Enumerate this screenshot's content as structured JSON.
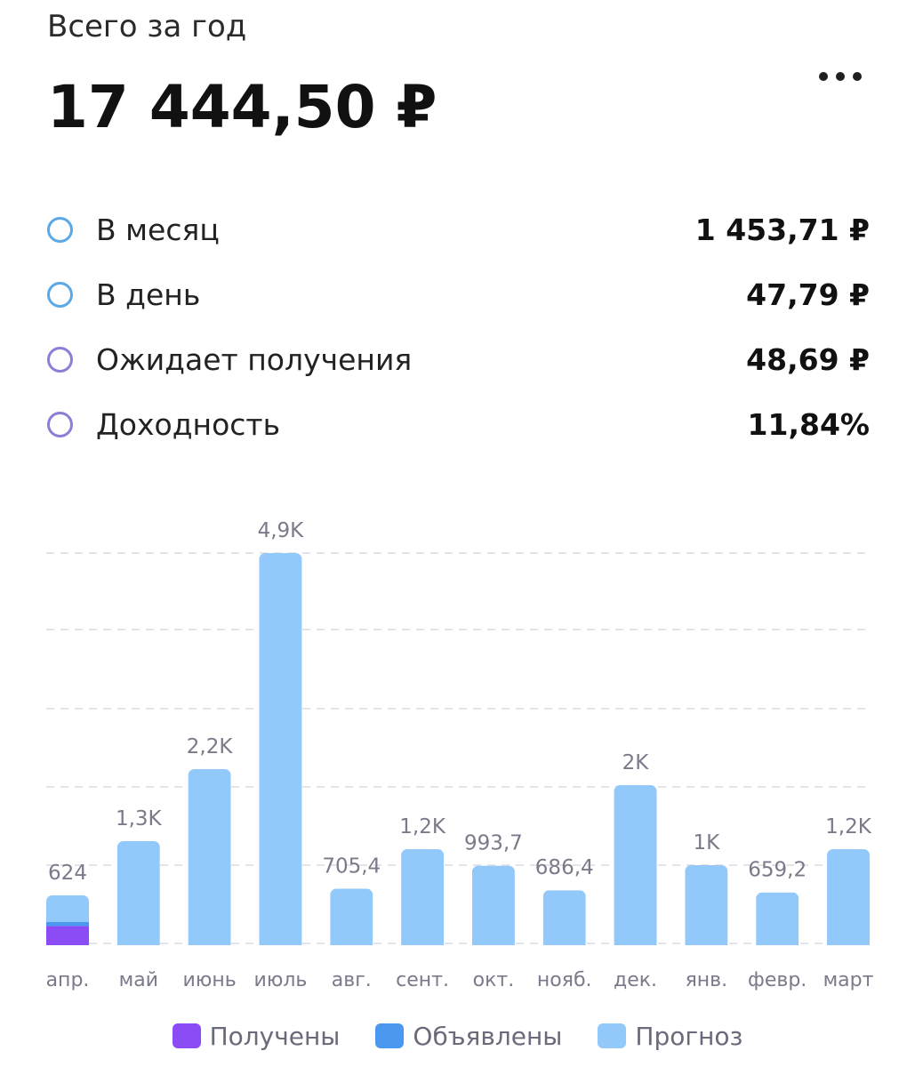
{
  "header": {
    "subtitle": "Всего за год",
    "total": "17 444,50 ₽",
    "more_icon": "more-horizontal-icon"
  },
  "stats": [
    {
      "label": "В месяц",
      "value": "1 453,71 ₽",
      "color": "#5aa8e6"
    },
    {
      "label": "В день",
      "value": "47,79 ₽",
      "color": "#5aa8e6"
    },
    {
      "label": "Ожидает получения",
      "value": "48,69 ₽",
      "color": "#8a7fd6"
    },
    {
      "label": "Доходность",
      "value": "11,84%",
      "color": "#8a7fd6"
    }
  ],
  "chart_data": {
    "type": "bar",
    "stacked": true,
    "categories": [
      "апр.",
      "май",
      "июнь",
      "июль",
      "авг.",
      "сент.",
      "окт.",
      "нояб.",
      "дек.",
      "янв.",
      "февр.",
      "март"
    ],
    "data_labels": [
      "624",
      "1,3K",
      "2,2K",
      "4,9K",
      "705,4",
      "1,2K",
      "993,7",
      "686,4",
      "2K",
      "1K",
      "659,2",
      "1,2K"
    ],
    "series": [
      {
        "name": "Получены",
        "color": "#8b4cf6",
        "values": [
          240,
          0,
          0,
          0,
          0,
          0,
          0,
          0,
          0,
          0,
          0,
          0
        ]
      },
      {
        "name": "Объявлены",
        "color": "#4a98f0",
        "values": [
          49,
          0,
          0,
          0,
          0,
          0,
          0,
          0,
          0,
          0,
          0,
          0
        ]
      },
      {
        "name": "Прогноз",
        "color": "#92c8fa",
        "values": [
          335,
          1300,
          2200,
          4900,
          705.4,
          1200,
          993.7,
          686.4,
          2000,
          1000,
          659.2,
          1200
        ]
      }
    ],
    "ylim": [
      0,
      4900
    ],
    "grid": true,
    "legend_position": "bottom"
  }
}
